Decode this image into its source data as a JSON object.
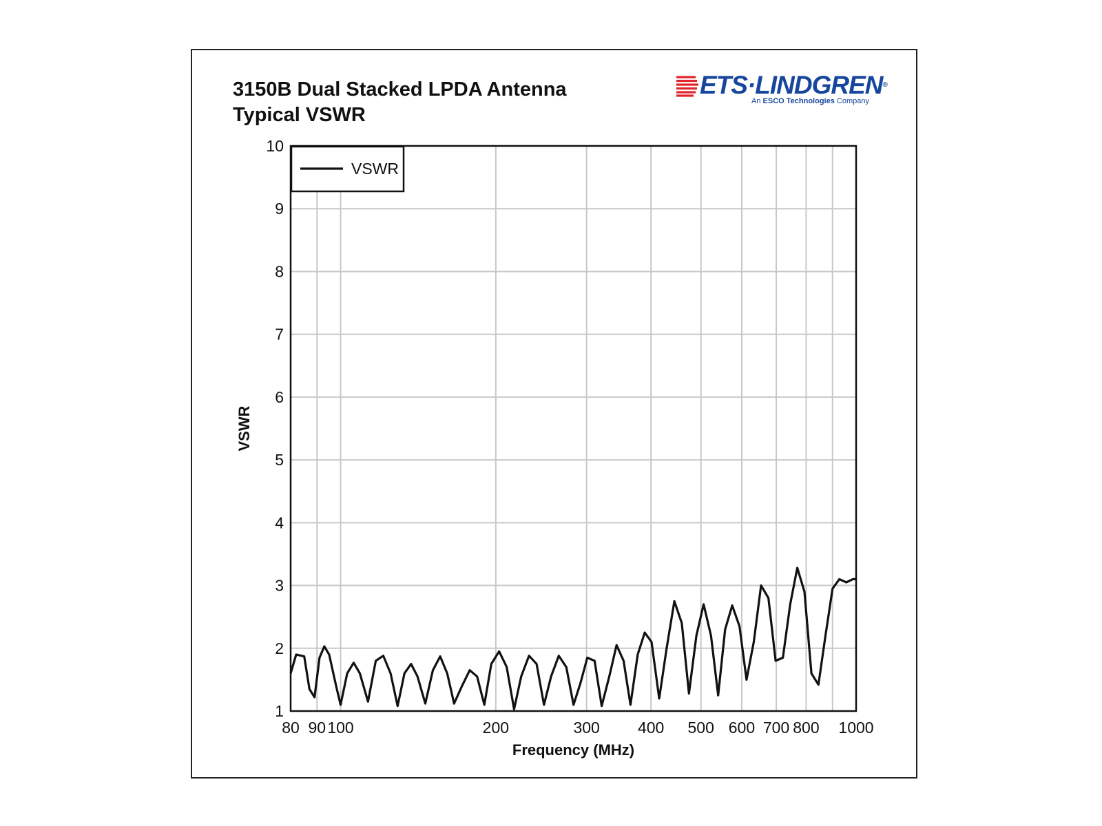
{
  "title": {
    "line1": "3150B Dual Stacked LPDA Antenna",
    "line2": "Typical VSWR"
  },
  "logo": {
    "brand": "ETS·LINDGREN",
    "reg": "®",
    "tag_prefix": "An ",
    "tag_bold": "ESCO Technologies",
    "tag_suffix": " Company",
    "color": "#17469e",
    "accent": "#e0262c"
  },
  "chart_data": {
    "type": "line",
    "xlabel": "Frequency (MHz)",
    "ylabel": "VSWR",
    "xscale": "log",
    "xlim": [
      80,
      1000
    ],
    "ylim": [
      1,
      10
    ],
    "x_ticks": [
      80,
      90,
      100,
      200,
      300,
      400,
      500,
      600,
      700,
      800,
      1000
    ],
    "x_tick_labels": [
      "80",
      "90",
      "100",
      "200",
      "300",
      "400",
      "500",
      "600",
      "700",
      "800",
      "1000"
    ],
    "x_grid": [
      80,
      90,
      100,
      200,
      300,
      400,
      500,
      600,
      700,
      800,
      900,
      1000
    ],
    "y_ticks": [
      1,
      2,
      3,
      4,
      5,
      6,
      7,
      8,
      9,
      10
    ],
    "y_tick_labels": [
      "1",
      "2",
      "3",
      "4",
      "5",
      "6",
      "7",
      "8",
      "9",
      "10"
    ],
    "grid": true,
    "legend_position": "top-left",
    "series": [
      {
        "name": "VSWR",
        "color": "#111111",
        "x": [
          80,
          82,
          85,
          87,
          89,
          91,
          93,
          95,
          98,
          100,
          103,
          106,
          109,
          113,
          117,
          121,
          125,
          129,
          133,
          137,
          141,
          146,
          151,
          156,
          161,
          166,
          172,
          178,
          184,
          190,
          196,
          203,
          210,
          217,
          224,
          232,
          240,
          248,
          256,
          265,
          274,
          283,
          292,
          301,
          311,
          321,
          332,
          343,
          354,
          365,
          377,
          389,
          401,
          415,
          429,
          444,
          459,
          474,
          490,
          506,
          523,
          540,
          557,
          575,
          594,
          613,
          633,
          654,
          676,
          698,
          721,
          745,
          769,
          794,
          819,
          845,
          872,
          900,
          928,
          957,
          986,
          1000
        ],
        "y": [
          1.6,
          1.9,
          1.87,
          1.35,
          1.22,
          1.85,
          2.03,
          1.9,
          1.4,
          1.1,
          1.6,
          1.77,
          1.6,
          1.15,
          1.8,
          1.88,
          1.6,
          1.08,
          1.6,
          1.75,
          1.55,
          1.12,
          1.65,
          1.87,
          1.6,
          1.12,
          1.4,
          1.65,
          1.55,
          1.1,
          1.75,
          1.95,
          1.7,
          1.03,
          1.55,
          1.88,
          1.75,
          1.1,
          1.55,
          1.88,
          1.7,
          1.1,
          1.45,
          1.85,
          1.8,
          1.08,
          1.55,
          2.05,
          1.8,
          1.1,
          1.9,
          2.25,
          2.1,
          1.2,
          2.0,
          2.75,
          2.4,
          1.28,
          2.2,
          2.7,
          2.2,
          1.25,
          2.3,
          2.68,
          2.35,
          1.5,
          2.1,
          3.0,
          2.8,
          1.8,
          1.85,
          2.7,
          3.28,
          2.9,
          1.6,
          1.42,
          2.2,
          2.95,
          3.1,
          3.05,
          3.1,
          3.1
        ]
      }
    ]
  }
}
